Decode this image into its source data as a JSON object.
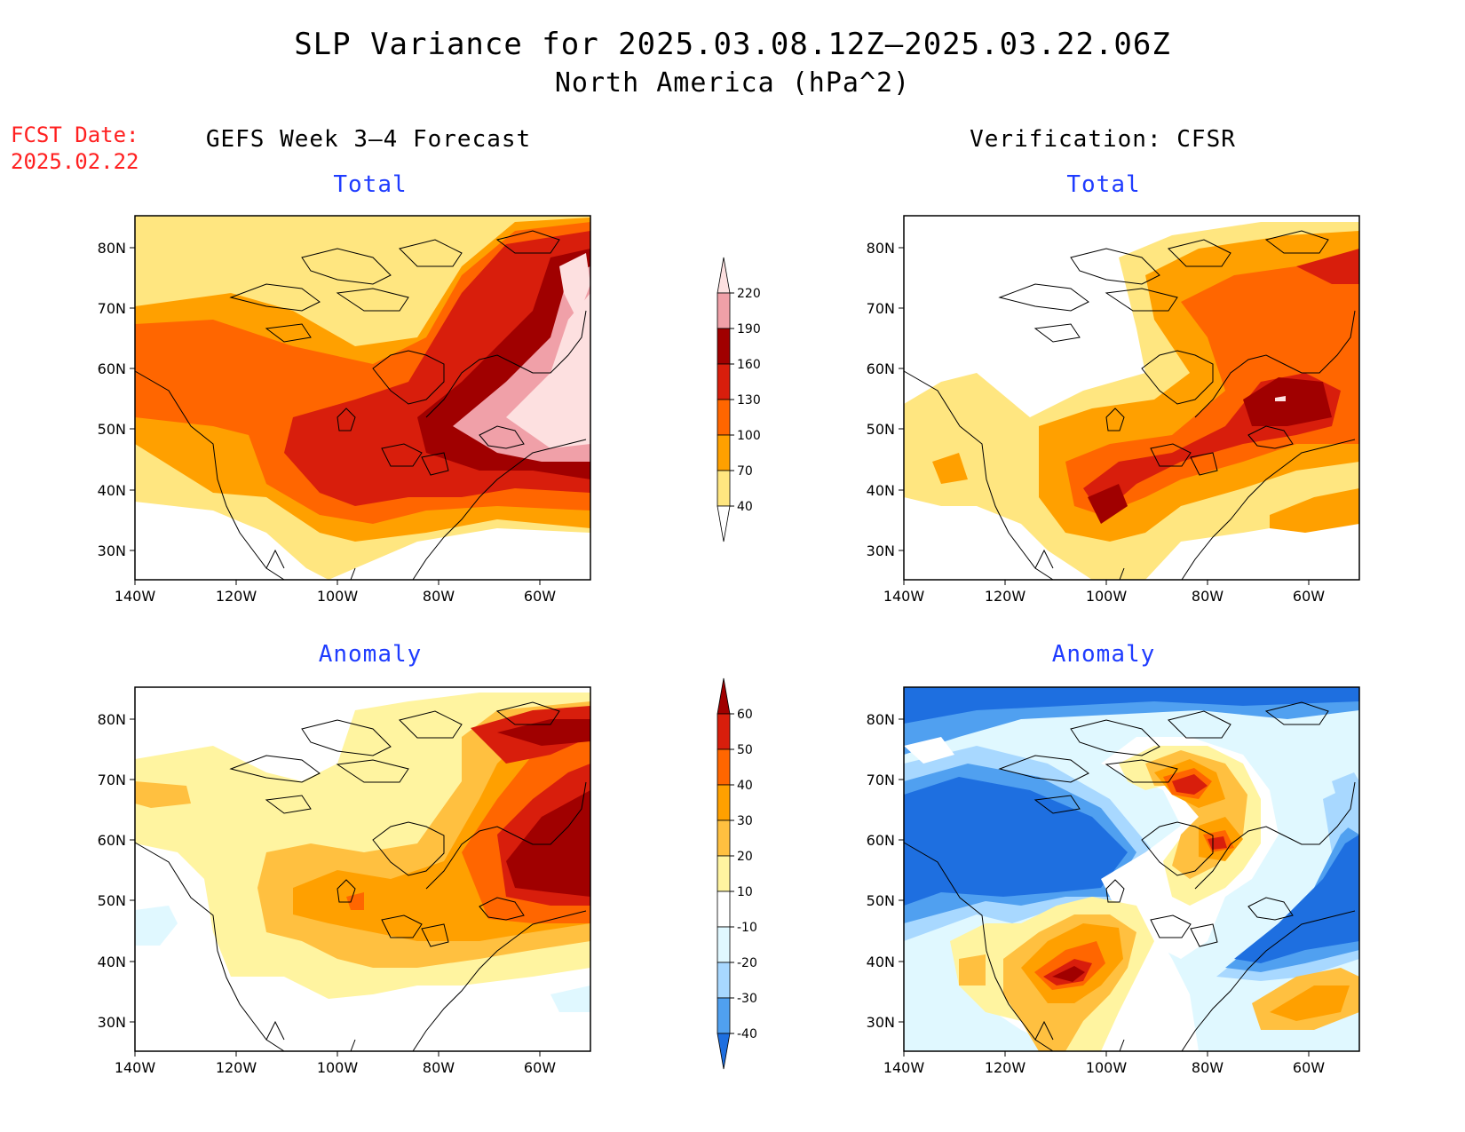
{
  "title": {
    "line1": "SLP Variance for 2025.03.08.12Z–2025.03.22.06Z",
    "line2": "North America (hPa^2)"
  },
  "fcst_date": {
    "label": "FCST Date:",
    "value": "2025.02.22"
  },
  "headers": {
    "left": "GEFS Week 3–4 Forecast",
    "right": "Verification: CFSR"
  },
  "panels": [
    {
      "id": "forecast-total",
      "label": "Total"
    },
    {
      "id": "verification-total",
      "label": "Total"
    },
    {
      "id": "forecast-anomaly",
      "label": "Anomaly"
    },
    {
      "id": "verification-anomaly",
      "label": "Anomaly"
    }
  ],
  "axes": {
    "lat_ticks": [
      "80N",
      "70N",
      "60N",
      "50N",
      "40N",
      "30N"
    ],
    "lon_ticks": [
      "140W",
      "120W",
      "100W",
      "80W",
      "60W"
    ]
  },
  "colorbars": {
    "total": {
      "levels": [
        "220",
        "190",
        "160",
        "130",
        "100",
        "70",
        "40"
      ],
      "colors": [
        "#fde0e0",
        "#f0a0a8",
        "#a00000",
        "#d81e0c",
        "#ff6600",
        "#ffa000",
        "#ffe680"
      ]
    },
    "anomaly": {
      "levels": [
        "60",
        "50",
        "40",
        "30",
        "20",
        "10",
        "-10",
        "-20",
        "-30",
        "-40"
      ],
      "colors": [
        "#a00000",
        "#d81e0c",
        "#ff6600",
        "#ffa000",
        "#ffc040",
        "#fff4a0",
        "#ffffff",
        "#e0f8ff",
        "#a8d8ff",
        "#50a0f0",
        "#1e6fe0"
      ]
    }
  }
}
